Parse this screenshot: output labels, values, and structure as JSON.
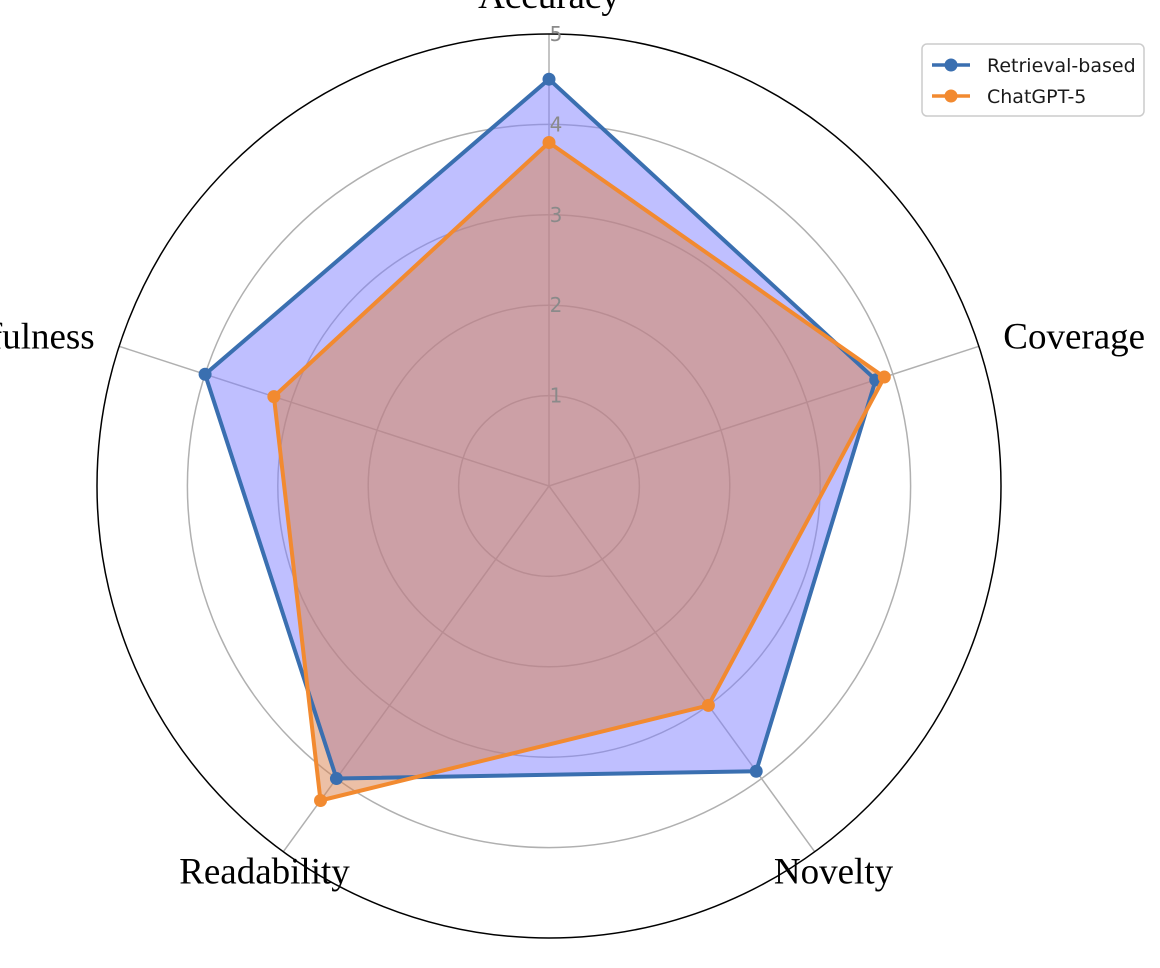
{
  "chart_data": {
    "type": "radar",
    "axes": [
      "Accuracy",
      "Coverage",
      "Novelty",
      "Readability",
      "Usefulness"
    ],
    "rticks": [
      "1",
      "2",
      "3",
      "4",
      "5"
    ],
    "rlim": [
      0,
      5
    ],
    "grid": true,
    "legend_position": "top-right",
    "series": [
      {
        "name": "Retrieval-based",
        "values": [
          4.5,
          3.8,
          3.9,
          4.0,
          4.0
        ],
        "color": "#3a6fb0",
        "fill": "#8080ff",
        "fill_opacity": 0.5
      },
      {
        "name": "ChatGPT-5",
        "values": [
          3.8,
          3.9,
          3.0,
          4.3,
          3.2
        ],
        "color": "#f28a30",
        "fill": "#d9824d",
        "fill_opacity": 0.5
      }
    ]
  }
}
